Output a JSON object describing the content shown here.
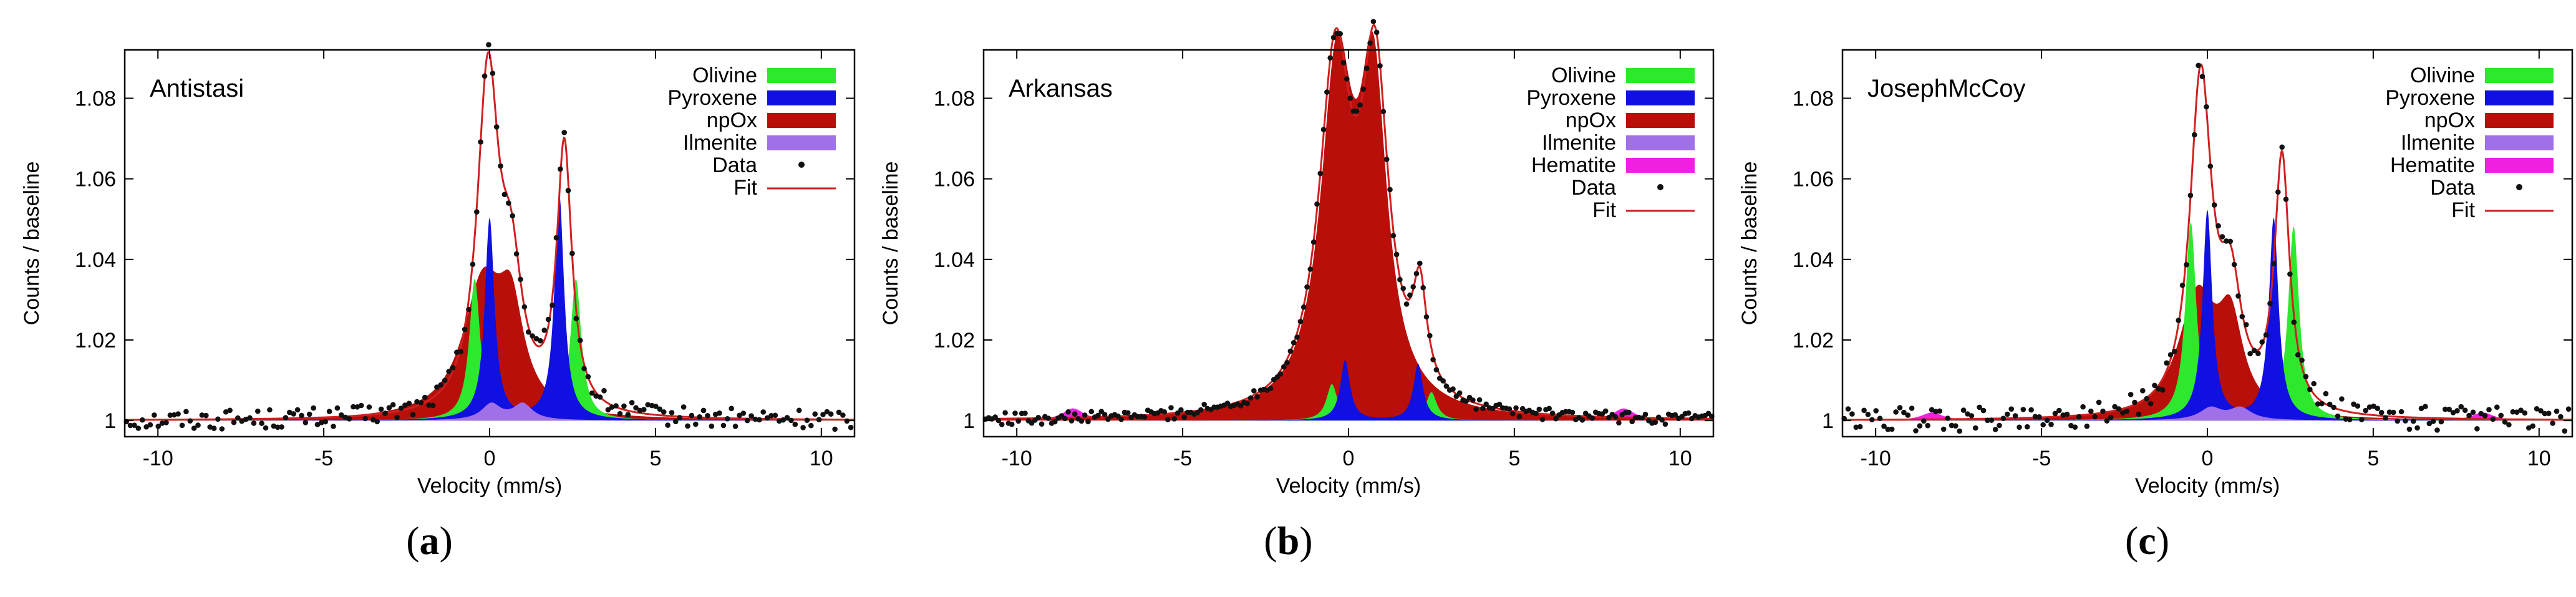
{
  "colors": {
    "olivine": "#2ee82e",
    "pyroxene": "#1010e0",
    "npox": "#b80f0a",
    "ilmenite": "#a070e8",
    "hematite": "#f020e0",
    "fit": "#d02020",
    "data": "#111111"
  },
  "chart_data": [
    {
      "type": "line",
      "panel_label": "a",
      "title": "Antistasi",
      "xlabel": "Velocity (mm/s)",
      "ylabel": "Counts / baseline",
      "xlim": [
        -11,
        11
      ],
      "ylim": [
        0.996,
        1.092
      ],
      "xticks": [
        -10,
        -5,
        0,
        5,
        10
      ],
      "yticks": [
        1,
        1.02,
        1.04,
        1.06,
        1.08
      ],
      "ytick_labels": [
        "1",
        "1.02",
        "1.04",
        "1.06",
        "1.08"
      ],
      "legend": [
        "Olivine",
        "Pyroxene",
        "npOx",
        "Ilmenite",
        "Data",
        "Fit"
      ],
      "legend_position": "top-right",
      "series": [
        {
          "name": "npOx",
          "peaks": [
            {
              "center": -0.2,
              "height": 0.033,
              "width": 1.5
            },
            {
              "center": 0.65,
              "height": 0.022,
              "width": 0.9
            }
          ]
        },
        {
          "name": "Pyroxene",
          "peaks": [
            {
              "center": 0.0,
              "height": 0.05,
              "width": 0.35
            },
            {
              "center": 2.1,
              "height": 0.056,
              "width": 0.35
            }
          ]
        },
        {
          "name": "Olivine",
          "peaks": [
            {
              "center": -0.45,
              "height": 0.035,
              "width": 0.4
            },
            {
              "center": 2.6,
              "height": 0.035,
              "width": 0.4
            }
          ]
        },
        {
          "name": "Ilmenite",
          "peaks": [
            {
              "center": 0.05,
              "height": 0.004,
              "width": 0.7
            },
            {
              "center": 1.0,
              "height": 0.004,
              "width": 0.7
            }
          ]
        }
      ],
      "fit_peaks": [
        {
          "center": -0.05,
          "height": 0.083,
          "width": 0.8
        },
        {
          "center": 0.65,
          "height": 0.03,
          "width": 0.8
        },
        {
          "center": 2.25,
          "height": 0.066,
          "width": 0.55
        }
      ],
      "noise": 0.0025,
      "data_step": 0.12
    },
    {
      "type": "line",
      "panel_label": "b",
      "title": "Arkansas",
      "xlabel": "Velocity (mm/s)",
      "ylabel": "Counts / baseline",
      "xlim": [
        -11,
        11
      ],
      "ylim": [
        0.996,
        1.092
      ],
      "xticks": [
        -10,
        -5,
        0,
        5,
        10
      ],
      "yticks": [
        1,
        1.02,
        1.04,
        1.06,
        1.08
      ],
      "ytick_labels": [
        "1",
        "1.02",
        "1.04",
        "1.06",
        "1.08"
      ],
      "legend": [
        "Olivine",
        "Pyroxene",
        "npOx",
        "Ilmenite",
        "Hematite",
        "Data",
        "Fit"
      ],
      "legend_position": "top-right",
      "series": [
        {
          "name": "npOx",
          "peaks": [
            {
              "center": -0.35,
              "height": 0.083,
              "width": 1.2
            },
            {
              "center": 0.75,
              "height": 0.077,
              "width": 1.0
            }
          ]
        },
        {
          "name": "Pyroxene",
          "peaks": [
            {
              "center": -0.1,
              "height": 0.015,
              "width": 0.35
            },
            {
              "center": 2.1,
              "height": 0.014,
              "width": 0.35
            }
          ]
        },
        {
          "name": "Olivine",
          "peaks": [
            {
              "center": -0.5,
              "height": 0.009,
              "width": 0.4
            },
            {
              "center": 2.5,
              "height": 0.007,
              "width": 0.4
            }
          ]
        },
        {
          "name": "Hematite",
          "peaks": [
            {
              "center": -8.3,
              "height": 0.003,
              "width": 0.8
            },
            {
              "center": 8.3,
              "height": 0.003,
              "width": 0.8
            }
          ]
        }
      ],
      "fit_peaks": [
        {
          "center": -0.4,
          "height": 0.085,
          "width": 1.2
        },
        {
          "center": 0.8,
          "height": 0.08,
          "width": 1.0
        },
        {
          "center": 2.15,
          "height": 0.024,
          "width": 0.5
        }
      ],
      "noise": 0.0015,
      "data_step": 0.1
    },
    {
      "type": "line",
      "panel_label": "c",
      "title": "JosephMcCoy",
      "xlabel": "Velocity (mm/s)",
      "ylabel": "Counts / baseline",
      "xlim": [
        -11,
        11
      ],
      "ylim": [
        0.996,
        1.092
      ],
      "xticks": [
        -10,
        -5,
        0,
        5,
        10
      ],
      "yticks": [
        1,
        1.02,
        1.04,
        1.06,
        1.08
      ],
      "ytick_labels": [
        "1",
        "1.02",
        "1.04",
        "1.06",
        "1.08"
      ],
      "legend": [
        "Olivine",
        "Pyroxene",
        "npOx",
        "Ilmenite",
        "Hematite",
        "Data",
        "Fit"
      ],
      "legend_position": "top-right",
      "series": [
        {
          "name": "npOx",
          "peaks": [
            {
              "center": -0.3,
              "height": 0.03,
              "width": 1.4
            },
            {
              "center": 0.7,
              "height": 0.021,
              "width": 0.9
            }
          ]
        },
        {
          "name": "Pyroxene",
          "peaks": [
            {
              "center": 0.0,
              "height": 0.052,
              "width": 0.35
            },
            {
              "center": 2.0,
              "height": 0.05,
              "width": 0.35
            }
          ]
        },
        {
          "name": "Olivine",
          "peaks": [
            {
              "center": -0.5,
              "height": 0.049,
              "width": 0.4
            },
            {
              "center": 2.6,
              "height": 0.048,
              "width": 0.4
            }
          ]
        },
        {
          "name": "Ilmenite",
          "peaks": [
            {
              "center": 0.1,
              "height": 0.003,
              "width": 0.8
            },
            {
              "center": 1.0,
              "height": 0.003,
              "width": 0.8
            }
          ]
        },
        {
          "name": "Hematite",
          "peaks": [
            {
              "center": -8.3,
              "height": 0.002,
              "width": 0.8
            },
            {
              "center": 8.3,
              "height": 0.002,
              "width": 0.8
            }
          ]
        }
      ],
      "fit_peaks": [
        {
          "center": -0.2,
          "height": 0.083,
          "width": 0.8
        },
        {
          "center": 0.7,
          "height": 0.028,
          "width": 0.8
        },
        {
          "center": 2.25,
          "height": 0.063,
          "width": 0.55
        }
      ],
      "noise": 0.003,
      "data_step": 0.12
    }
  ]
}
